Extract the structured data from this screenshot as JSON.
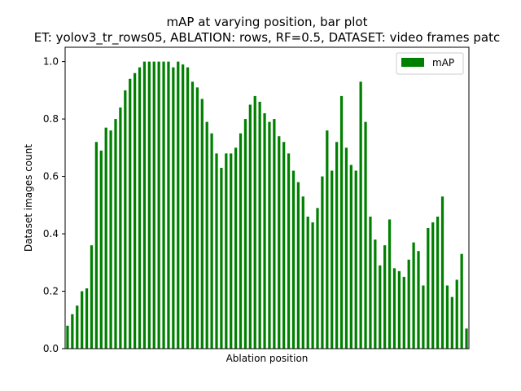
{
  "chart_data": {
    "type": "bar",
    "title": "mAP at varying position, bar plot",
    "subtitle": "ET: yolov3_tr_rows05, ABLATION: rows, RF=0.5, DATASET: video frames patc",
    "xlabel": "Ablation position",
    "ylabel": "Dataset images count",
    "ylim": [
      0,
      1.05
    ],
    "yticks": [
      "0.0",
      "0.2",
      "0.4",
      "0.6",
      "0.8",
      "1.0"
    ],
    "legend": {
      "position": "top-right",
      "entries": [
        "mAP"
      ]
    },
    "colors": {
      "bar": "#008000"
    },
    "series": [
      {
        "name": "mAP",
        "values": [
          0.08,
          0.12,
          0.15,
          0.2,
          0.21,
          0.36,
          0.72,
          0.69,
          0.77,
          0.76,
          0.8,
          0.84,
          0.9,
          0.94,
          0.96,
          0.98,
          1.0,
          1.0,
          1.0,
          1.0,
          1.0,
          1.0,
          0.98,
          1.0,
          0.99,
          0.98,
          0.93,
          0.91,
          0.87,
          0.79,
          0.75,
          0.68,
          0.63,
          0.68,
          0.68,
          0.7,
          0.75,
          0.8,
          0.85,
          0.88,
          0.86,
          0.82,
          0.79,
          0.8,
          0.74,
          0.72,
          0.68,
          0.62,
          0.58,
          0.53,
          0.46,
          0.44,
          0.49,
          0.6,
          0.76,
          0.62,
          0.72,
          0.88,
          0.7,
          0.64,
          0.62,
          0.93,
          0.79,
          0.46,
          0.38,
          0.29,
          0.36,
          0.45,
          0.28,
          0.27,
          0.25,
          0.31,
          0.37,
          0.34,
          0.22,
          0.42,
          0.44,
          0.46,
          0.53,
          0.22,
          0.18,
          0.24,
          0.33,
          0.07
        ]
      }
    ]
  }
}
